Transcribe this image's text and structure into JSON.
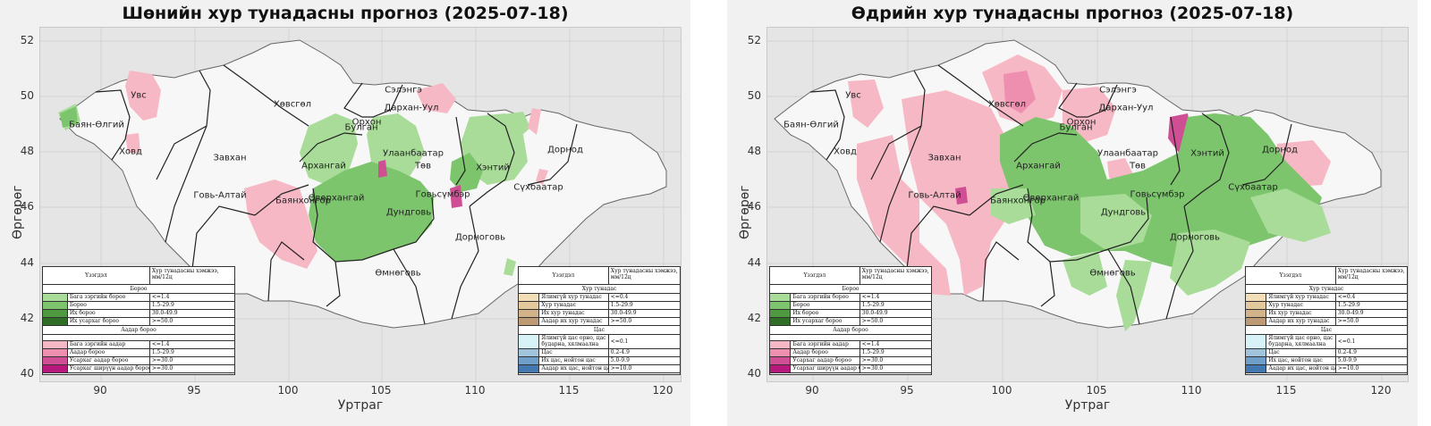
{
  "axis": {
    "xlabel": "Уртраг",
    "ylabel": "Өргөрөг",
    "xticks": [
      "90",
      "95",
      "100",
      "105",
      "110",
      "115",
      "120"
    ],
    "yticks": [
      "52",
      "50",
      "48",
      "46",
      "44",
      "42",
      "40"
    ]
  },
  "panels": [
    {
      "title": "Шөнийн хур тунадасны прогноз (2025-07-18)",
      "region_labels": [
        "Увс",
        "Баян-Өлгий",
        "Ховд",
        "Хөвсгөл",
        "Завхан",
        "Архангай",
        "Говь-Алтай",
        "Баянхонгор",
        "Өвөрхангай",
        "Булган",
        "Орхон",
        "Сэлэнгэ",
        "Дархан-Уул",
        "Улаанбаатар",
        "Төв",
        "Хэнтий",
        "Дорнод",
        "Сүхбаатар",
        "Дундговь",
        "Говьсүмбэр",
        "Дорноговь",
        "Өмнөговь"
      ]
    },
    {
      "title": "Өдрийн хур тунадасны прогноз (2025-07-18)",
      "region_labels": [
        "Увс",
        "Баян-Өлгий",
        "Ховд",
        "Хөвсгөл",
        "Завхан",
        "Архангай",
        "Говь-Алтай",
        "Баянхонгор",
        "Өвөрхангай",
        "Булган",
        "Орхон",
        "Сэлэнгэ",
        "Дархан-Уул",
        "Улаанбаатар",
        "Төв",
        "Хэнтий",
        "Дорнод",
        "Сүхбаатар",
        "Дундговь",
        "Говьсүмбэр",
        "Дорноговь",
        "Өмнөговь"
      ]
    }
  ],
  "legend_left": {
    "col1": "Үзэгдэл",
    "col2": "Хур тунадасны хэмжээ, мм/12ц",
    "sections": [
      {
        "title": "Бороо",
        "rows": [
          {
            "name": "Бага зэргийн бороо",
            "range": "<=1.4",
            "color": "#a8dc98"
          },
          {
            "name": "Бороо",
            "range": "1.5-29.9",
            "color": "#7cc56c"
          },
          {
            "name": "Их бороо",
            "range": "30.0-49.9",
            "color": "#4f9a41"
          },
          {
            "name": "Их усархаг бороо",
            "range": ">=50.0",
            "color": "#2e6e26"
          }
        ]
      },
      {
        "title": "Аадар бороо",
        "rows": [
          {
            "name": "Бага зэргийн аадар",
            "range": "<=1.4",
            "color": "#f7b8c6"
          },
          {
            "name": "Аадар бороо",
            "range": "1.5-29.9",
            "color": "#ee8fb0"
          },
          {
            "name": "Усархаг аадар бороо",
            "range": ">=30.0",
            "color": "#d04f94"
          },
          {
            "name": "Усархаг ширүүн аадар бороо",
            "range": ">=30.0",
            "color": "#b8177c"
          }
        ]
      }
    ]
  },
  "legend_right": {
    "col1": "Үзэгдэл",
    "col2": "Хур тунадасны хэмжээ, мм/12ц",
    "sections": [
      {
        "title": "Хур тунадас",
        "rows": [
          {
            "name": "Ялимгүй хур тунадас",
            "range": "<=0.4",
            "color": "#f2dfb8"
          },
          {
            "name": "Хур тунадас",
            "range": "1.5-29.9",
            "color": "#e3c99b"
          },
          {
            "name": "Их хур тунадас",
            "range": "30.0-49.9",
            "color": "#d2b38a"
          },
          {
            "name": "Аадар их хур тунадас",
            "range": ">=50.0",
            "color": "#bd9a73"
          }
        ]
      },
      {
        "title": "Цас",
        "rows": [
          {
            "name": "Ялимгүй цас орно, цас бударна, хялмаална",
            "range": "<=0.1",
            "color": "#d8f3f7",
            "tall": true
          },
          {
            "name": "Цас",
            "range": "0.2-4.9",
            "color": "#9fc4dc"
          },
          {
            "name": "Их цас, нойтон цас",
            "range": "5.0-9.9",
            "color": "#6f9fc8"
          },
          {
            "name": "Аадар их цас, нойтон цас",
            "range": ">=10.0",
            "color": "#4277b0"
          }
        ]
      }
    ]
  }
}
